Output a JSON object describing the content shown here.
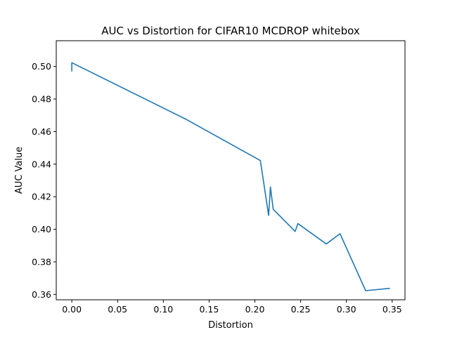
{
  "chart_data": {
    "type": "line",
    "title": "AUC vs Distortion for CIFAR10 MCDROP whitebox",
    "xlabel": "Distortion",
    "ylabel": "AUC Value",
    "xlim": [
      -0.017,
      0.364
    ],
    "ylim": [
      0.3567,
      0.5158
    ],
    "xticks": [
      0.0,
      0.05,
      0.1,
      0.15,
      0.2,
      0.25,
      0.3,
      0.35
    ],
    "xtick_labels": [
      "0.00",
      "0.05",
      "0.10",
      "0.15",
      "0.20",
      "0.25",
      "0.30",
      "0.35"
    ],
    "yticks": [
      0.36,
      0.38,
      0.4,
      0.42,
      0.44,
      0.46,
      0.48,
      0.5
    ],
    "ytick_labels": [
      "0.36",
      "0.38",
      "0.40",
      "0.42",
      "0.44",
      "0.46",
      "0.48",
      "0.50"
    ],
    "grid": false,
    "series": [
      {
        "color": "#1f77b4",
        "x": [
          0.0,
          0.0,
          0.125,
          0.206,
          0.215,
          0.217,
          0.22,
          0.244,
          0.247,
          0.278,
          0.293,
          0.321,
          0.347
        ],
        "y": [
          0.4973,
          0.5023,
          0.4675,
          0.4422,
          0.4085,
          0.426,
          0.4123,
          0.3987,
          0.4035,
          0.391,
          0.3973,
          0.3623,
          0.3637
        ]
      }
    ]
  }
}
